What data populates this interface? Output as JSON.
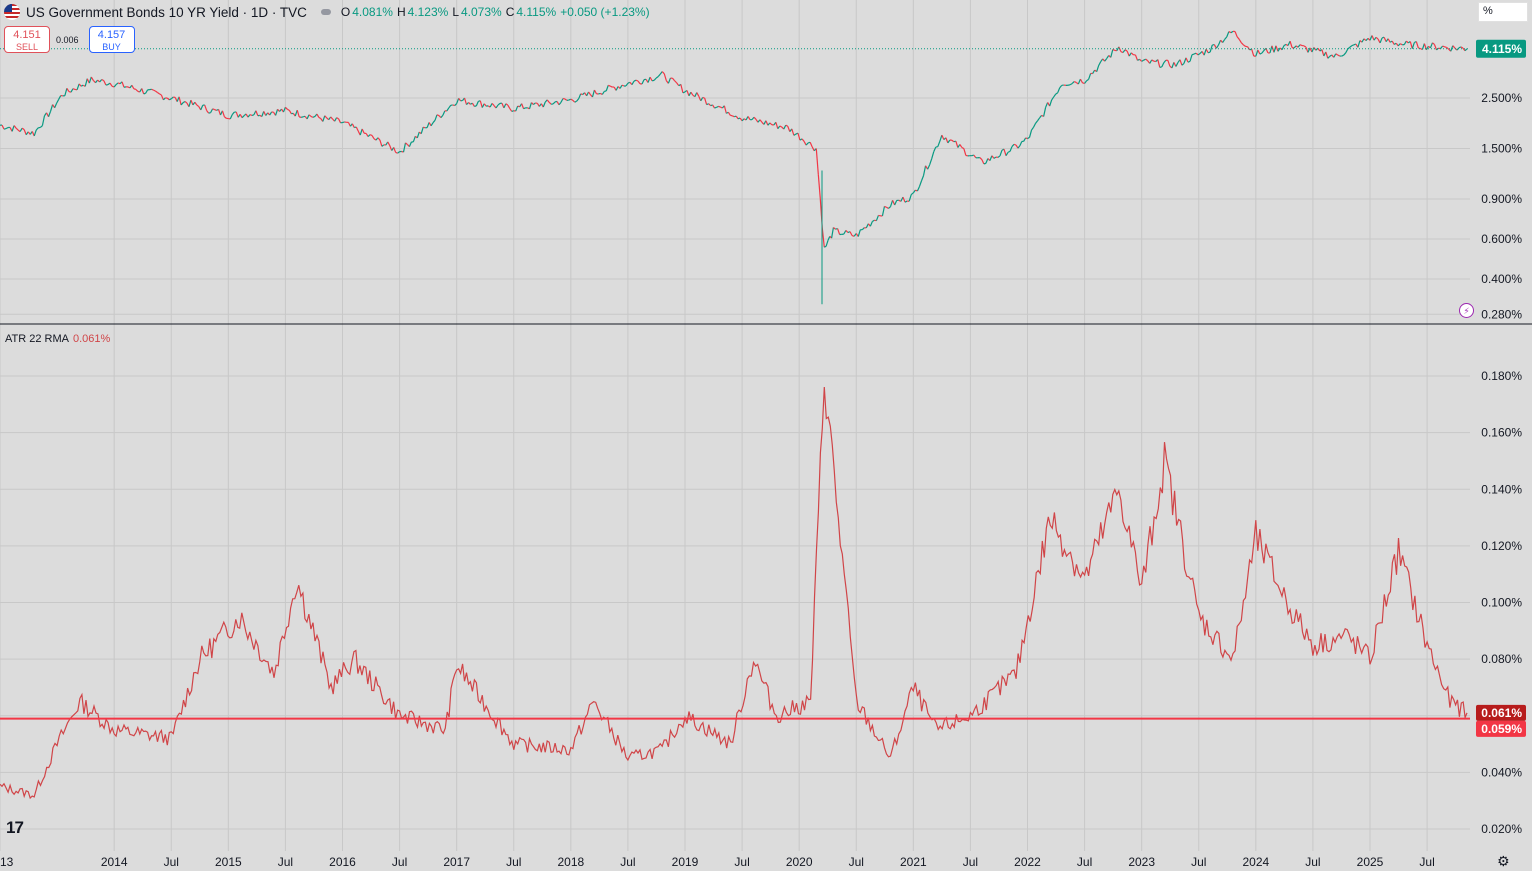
{
  "header": {
    "title": "US Government Bonds 10 YR Yield · 1D · TVC",
    "open_label": "O",
    "open": "4.081%",
    "high_label": "H",
    "high": "4.123%",
    "low_label": "L",
    "low": "4.073%",
    "close_label": "C",
    "close": "4.115%",
    "change": "+0.050 (+1.23%)"
  },
  "trade": {
    "sell_price": "4.151",
    "sell_label": "SELL",
    "spread": "0.006",
    "buy_price": "4.157",
    "buy_label": "BUY"
  },
  "unit_button": "%",
  "indicator": {
    "name": "ATR 22 RMA",
    "value": "0.061%"
  },
  "colors": {
    "up": "#089981",
    "down": "#f23645",
    "atr_line": "#d04548",
    "hline": "#f23645",
    "price_badge": "#089981",
    "atr_badge": "#b71c1c",
    "hline_badge": "#f23645",
    "grid": "#c8c8c8",
    "background": "#dcdcdc"
  },
  "icons": {
    "flag": "us-flag-icon",
    "logo": "tradingview-logo",
    "settings": "gear-icon",
    "bolt": "lightning-icon"
  },
  "chart_data": [
    {
      "type": "line",
      "title": "US Government Bonds 10 YR Yield",
      "y_scale": "log",
      "y_ticks": [
        "2.500%",
        "1.500%",
        "0.900%",
        "0.600%",
        "0.400%",
        "0.280%"
      ],
      "y_tick_values": [
        2.5,
        1.5,
        0.9,
        0.6,
        0.4,
        0.28
      ],
      "last_value_label": "4.115%",
      "last_value": 4.115,
      "x": [
        2013.0,
        2013.3,
        2013.55,
        2013.8,
        2014.0,
        2014.5,
        2015.0,
        2015.5,
        2016.0,
        2016.5,
        2017.0,
        2017.5,
        2018.0,
        2018.5,
        2018.8,
        2019.0,
        2019.5,
        2019.9,
        2020.15,
        2020.22,
        2020.3,
        2020.5,
        2020.8,
        2021.0,
        2021.25,
        2021.6,
        2021.9,
        2022.0,
        2022.3,
        2022.5,
        2022.8,
        2023.0,
        2023.3,
        2023.6,
        2023.8,
        2024.0,
        2024.3,
        2024.7,
        2025.0,
        2025.3,
        2025.6,
        2025.85
      ],
      "values": [
        1.9,
        1.75,
        2.6,
        3.0,
        2.9,
        2.5,
        2.1,
        2.2,
        1.95,
        1.45,
        2.45,
        2.25,
        2.45,
        2.9,
        3.15,
        2.7,
        2.05,
        1.85,
        1.5,
        0.54,
        0.65,
        0.62,
        0.85,
        0.93,
        1.72,
        1.3,
        1.52,
        1.65,
        2.9,
        3.0,
        4.2,
        3.6,
        3.5,
        4.1,
        4.9,
        3.9,
        4.3,
        3.8,
        4.6,
        4.3,
        4.2,
        4.115
      ],
      "annotations": [
        "2020-03 intraday low near 0.31%"
      ]
    },
    {
      "type": "line",
      "title": "ATR 22 RMA",
      "y_ticks": [
        "0.180%",
        "0.160%",
        "0.140%",
        "0.120%",
        "0.100%",
        "0.080%",
        "0.060%",
        "0.040%",
        "0.020%"
      ],
      "y_tick_values": [
        0.18,
        0.16,
        0.14,
        0.12,
        0.1,
        0.08,
        0.06,
        0.04,
        0.02
      ],
      "x": [
        2013.0,
        2013.3,
        2013.5,
        2013.7,
        2014.0,
        2014.5,
        2014.75,
        2015.1,
        2015.4,
        2015.6,
        2015.9,
        2016.1,
        2016.5,
        2016.9,
        2017.0,
        2017.5,
        2018.0,
        2018.2,
        2018.5,
        2018.8,
        2019.0,
        2019.4,
        2019.6,
        2019.8,
        2020.1,
        2020.22,
        2020.5,
        2020.8,
        2021.0,
        2021.2,
        2021.5,
        2021.9,
        2022.2,
        2022.5,
        2022.8,
        2023.0,
        2023.2,
        2023.5,
        2023.8,
        2024.0,
        2024.3,
        2024.5,
        2024.8,
        2025.0,
        2025.25,
        2025.5,
        2025.7,
        2025.85
      ],
      "values": [
        0.035,
        0.032,
        0.05,
        0.065,
        0.055,
        0.052,
        0.08,
        0.095,
        0.075,
        0.108,
        0.07,
        0.08,
        0.06,
        0.055,
        0.078,
        0.05,
        0.048,
        0.065,
        0.045,
        0.048,
        0.06,
        0.05,
        0.08,
        0.06,
        0.065,
        0.18,
        0.065,
        0.045,
        0.07,
        0.055,
        0.06,
        0.075,
        0.13,
        0.108,
        0.14,
        0.105,
        0.15,
        0.095,
        0.08,
        0.123,
        0.098,
        0.085,
        0.088,
        0.08,
        0.118,
        0.085,
        0.065,
        0.061
      ],
      "last_value_label": "0.061%",
      "last_value": 0.061,
      "hline_label": "0.059%",
      "hline_value": 0.059
    }
  ],
  "x_axis": {
    "labels": [
      "13",
      "2014",
      "Jul",
      "2015",
      "Jul",
      "2016",
      "Jul",
      "2017",
      "Jul",
      "2018",
      "Jul",
      "2019",
      "Jul",
      "2020",
      "Jul",
      "2021",
      "Jul",
      "2022",
      "Jul",
      "2023",
      "Jul",
      "2024",
      "Jul",
      "2025",
      "Jul"
    ],
    "values": [
      2013.0,
      2014.0,
      2014.5,
      2015.0,
      2015.5,
      2016.0,
      2016.5,
      2017.0,
      2017.5,
      2018.0,
      2018.5,
      2019.0,
      2019.5,
      2020.0,
      2020.5,
      2021.0,
      2021.5,
      2022.0,
      2022.5,
      2023.0,
      2023.5,
      2024.0,
      2024.5,
      2025.0,
      2025.5
    ]
  }
}
